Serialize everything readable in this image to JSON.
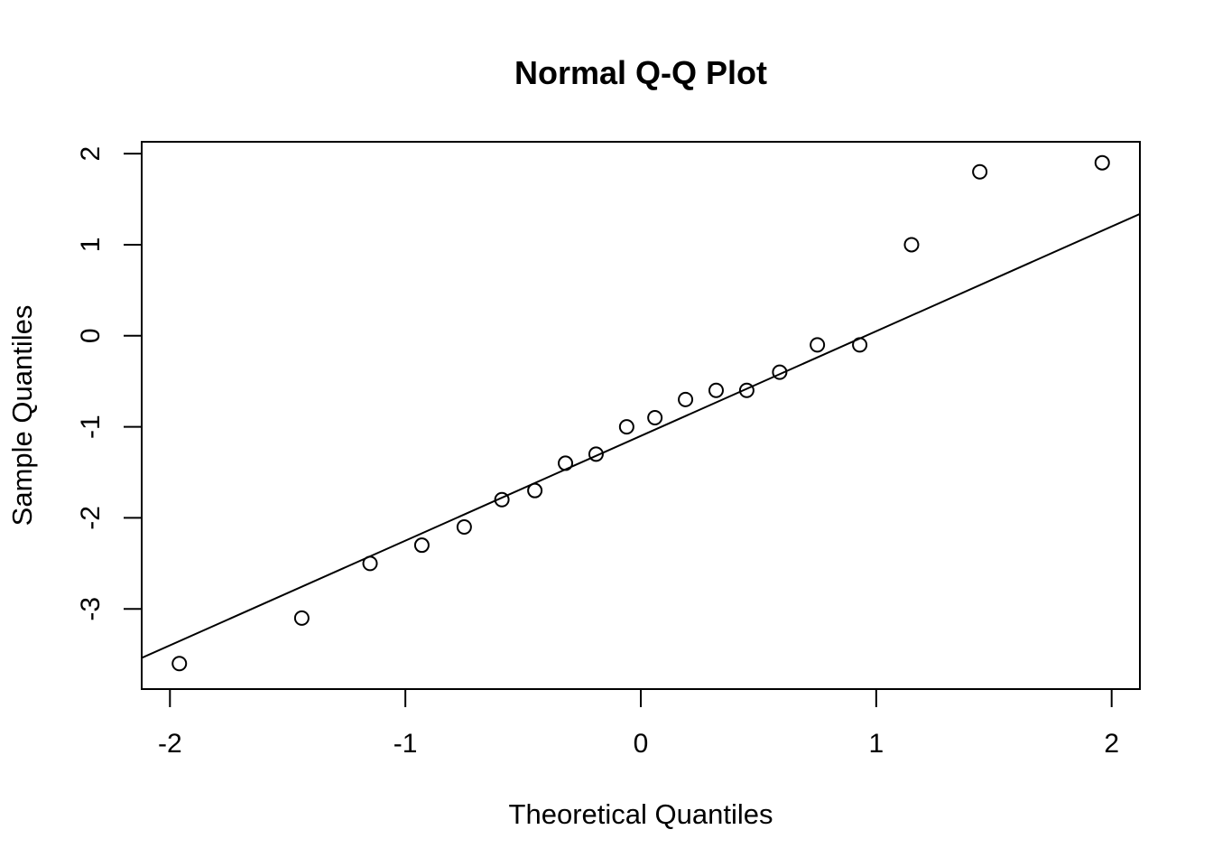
{
  "chart_data": {
    "type": "scatter",
    "title": "Normal Q-Q Plot",
    "xlabel": "Theoretical Quantiles",
    "ylabel": "Sample Quantiles",
    "xlim": [
      -2.12,
      2.12
    ],
    "ylim": [
      -3.88,
      2.13
    ],
    "xticks": [
      -2,
      -1,
      0,
      1,
      2
    ],
    "yticks": [
      -3,
      -2,
      -1,
      0,
      1,
      2
    ],
    "grid": false,
    "legend": "none",
    "point_style": "open-circle",
    "reference_line": {
      "slope": 1.15,
      "intercept": -1.1
    },
    "x": [
      -1.96,
      -1.44,
      -1.15,
      -0.93,
      -0.75,
      -0.59,
      -0.45,
      -0.32,
      -0.19,
      -0.06,
      0.06,
      0.19,
      0.32,
      0.45,
      0.59,
      0.75,
      0.93,
      1.15,
      1.44,
      1.96
    ],
    "y": [
      -3.6,
      -3.1,
      -2.5,
      -2.3,
      -2.1,
      -1.8,
      -1.7,
      -1.4,
      -1.3,
      -1.0,
      -0.9,
      -0.7,
      -0.6,
      -0.6,
      -0.4,
      -0.1,
      -0.1,
      1.0,
      1.8,
      1.9
    ]
  }
}
